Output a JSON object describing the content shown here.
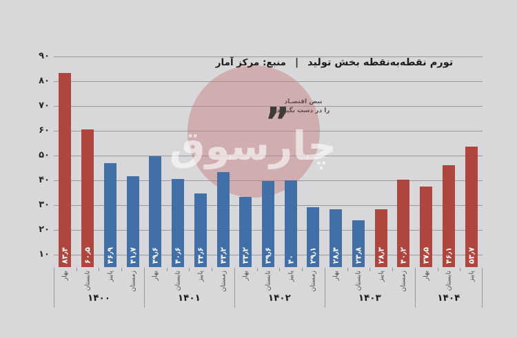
{
  "header": {
    "title": "تورم نقطه‌به‌نقطه بخش تولید",
    "separator": "|",
    "source": "منبع: مرکز آمار"
  },
  "watermark": {
    "slogan_line1": "نبض اقتصـاد",
    "slogan_line2": "را در دست بگیرید",
    "quote_mark": "”",
    "brand": "چارسوق"
  },
  "chart_data": {
    "type": "bar",
    "title": "تورم نقطه‌به‌نقطه بخش تولید",
    "source": "منبع: مرکز آمار",
    "xlabel": "",
    "ylabel": "",
    "ylim": [
      5,
      95
    ],
    "grid": "horizontal",
    "legend": "none",
    "yticks": [
      {
        "value": 10,
        "label": "۱۰"
      },
      {
        "value": 20,
        "label": "۲۰"
      },
      {
        "value": 30,
        "label": "۳۰"
      },
      {
        "value": 40,
        "label": "۴۰"
      },
      {
        "value": 50,
        "label": "۵۰"
      },
      {
        "value": 60,
        "label": "۶۰"
      },
      {
        "value": 70,
        "label": "۷۰"
      },
      {
        "value": 80,
        "label": "۸۰"
      },
      {
        "value": 90,
        "label": "۹۰"
      }
    ],
    "colors": {
      "red": "#b0453e",
      "blue": "#4170a8",
      "background": "#d8d8da",
      "gridline": "#98989a"
    },
    "seasons_order": [
      "بهار",
      "تابستان",
      "پاییز",
      "زمستان"
    ],
    "groups": [
      {
        "year": "۱۴۰۰",
        "bars": [
          {
            "season": "بهار",
            "value": 83.4,
            "label": "۸۳٫۴",
            "color": "red"
          },
          {
            "season": "تابستان",
            "value": 60.5,
            "label": "۶۰٫۵",
            "color": "red"
          },
          {
            "season": "پاییز",
            "value": 46.9,
            "label": "۴۶٫۹",
            "color": "blue"
          },
          {
            "season": "زمستان",
            "value": 41.7,
            "label": "۴۱٫۷",
            "color": "blue"
          }
        ]
      },
      {
        "year": "۱۴۰۱",
        "bars": [
          {
            "season": "بهار",
            "value": 49.6,
            "label": "۴۹٫۶",
            "color": "blue"
          },
          {
            "season": "تابستان",
            "value": 40.6,
            "label": "۴۰٫۶",
            "color": "blue"
          },
          {
            "season": "پاییز",
            "value": 34.6,
            "label": "۳۴٫۶",
            "color": "blue"
          },
          {
            "season": "زمستان",
            "value": 43.2,
            "label": "۴۳٫۲",
            "color": "blue"
          }
        ]
      },
      {
        "year": "۱۴۰۲",
        "bars": [
          {
            "season": "بهار",
            "value": 33.2,
            "label": "۳۳٫۲",
            "color": "blue"
          },
          {
            "season": "تابستان",
            "value": 39.6,
            "label": "۳۹٫۶",
            "color": "blue"
          },
          {
            "season": "پاییز",
            "value": 40,
            "label": "۴۰",
            "color": "blue"
          },
          {
            "season": "زمستان",
            "value": 29.1,
            "label": "۲۹٫۱",
            "color": "blue"
          }
        ]
      },
      {
        "year": "۱۴۰۳",
        "bars": [
          {
            "season": "بهار",
            "value": 28.4,
            "label": "۲۸٫۴",
            "color": "blue"
          },
          {
            "season": "تابستان",
            "value": 23.8,
            "label": "۲۳٫۸",
            "color": "blue"
          },
          {
            "season": "پاییز",
            "value": 28.3,
            "label": "۲۸٫۳",
            "color": "red"
          },
          {
            "season": "زمستان",
            "value": 40.2,
            "label": "۴۰٫۲",
            "color": "red"
          }
        ]
      },
      {
        "year": "۱۴۰۴",
        "bars": [
          {
            "season": "بهار",
            "value": 37.5,
            "label": "۳۷٫۵",
            "color": "red"
          },
          {
            "season": "تابستان",
            "value": 46.1,
            "label": "۴۶٫۱",
            "color": "red"
          },
          {
            "season": "پاییز",
            "value": 53.7,
            "label": "۵۳٫۷",
            "color": "red"
          }
        ]
      }
    ]
  }
}
